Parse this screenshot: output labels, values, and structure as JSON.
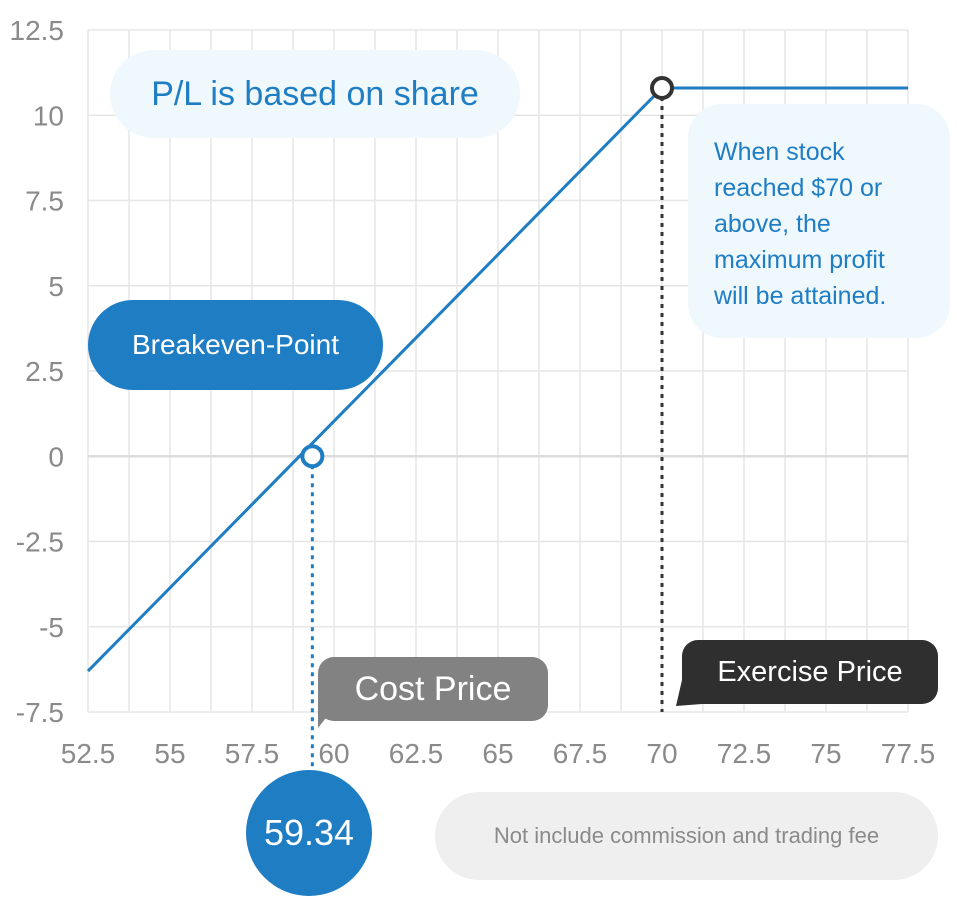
{
  "chart_data": {
    "type": "line",
    "title": "",
    "xlabel": "",
    "ylabel": "",
    "x_ticks": [
      "52.5",
      "55",
      "57.5",
      "60",
      "62.5",
      "65",
      "67.5",
      "70",
      "72.5",
      "75",
      "77.5"
    ],
    "y_ticks": [
      "12.5",
      "10",
      "7.5",
      "5",
      "2.5",
      "0",
      "-2.5",
      "-5",
      "-7.5"
    ],
    "xlim": [
      52.5,
      77.5
    ],
    "ylim": [
      -7.5,
      12.5
    ],
    "grid": true,
    "series": [
      {
        "points": [
          [
            52.5,
            -6.3
          ],
          [
            70,
            10.8
          ],
          [
            77.5,
            10.8
          ]
        ],
        "color": "#1f7dc4"
      }
    ],
    "markers": [
      {
        "x": 59.34,
        "y": 0,
        "color": "#1f7dc4"
      },
      {
        "x": 70,
        "y": 10.8,
        "color": "#333333"
      }
    ],
    "reference_lines": [
      {
        "x": 59.34,
        "color": "#1f7dc4"
      },
      {
        "x": 70,
        "color": "#333333"
      }
    ]
  },
  "annotations": {
    "pl_note": "P/L is based on share",
    "max_profit_note": [
      "When stock",
      "reached $70 or",
      "above, the",
      "maximum profit",
      "will be attained."
    ],
    "breakeven_label": "Breakeven-Point",
    "cost_price_label": "Cost Price",
    "exercise_price_label": "Exercise Price",
    "breakeven_value": "59.34",
    "fee_note": "Not include commission and trading fee"
  },
  "colors": {
    "accent": "#1f7dc4",
    "dark": "#2f2f2f",
    "gray_label": "#828282",
    "note_bg": "#eef8fd",
    "grid": "#e6e6e6"
  }
}
